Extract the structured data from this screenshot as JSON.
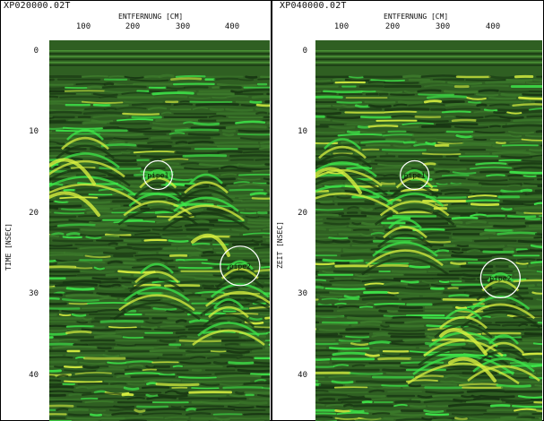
{
  "panels": [
    {
      "file_id": "XP020000.02T",
      "x_axis_title": "ENTFERNUNG [CM]",
      "y_axis_title": "TIME [NSEC]",
      "x_ticks": [
        "100",
        "200",
        "300",
        "400"
      ],
      "y_ticks": [
        "0",
        "10",
        "20",
        "30",
        "40"
      ],
      "markers": [
        {
          "label": "pipe1",
          "distance_cm": 250,
          "time_ns": 15.3,
          "size": "small"
        },
        {
          "label": "pipe2",
          "distance_cm": 415,
          "time_ns": 26.5,
          "size": "large"
        }
      ]
    },
    {
      "file_id": "XP040000.02T",
      "x_axis_title": "ENTFERNUNG [CM]",
      "y_axis_title": "ZEIT [NSEC]",
      "x_ticks": [
        "100",
        "200",
        "300",
        "400"
      ],
      "y_ticks": [
        "0",
        "10",
        "20",
        "30",
        "40"
      ],
      "markers": [
        {
          "label": "pipe1",
          "distance_cm": 245,
          "time_ns": 15.3,
          "size": "small"
        },
        {
          "label": "pipe2",
          "distance_cm": 415,
          "time_ns": 28.0,
          "size": "large"
        }
      ]
    }
  ],
  "colors": {
    "background": "#2f5f22",
    "bright": "#3ee84a",
    "yellow": "#d8f040",
    "dark": "#173412",
    "marker": "#ffffff"
  }
}
